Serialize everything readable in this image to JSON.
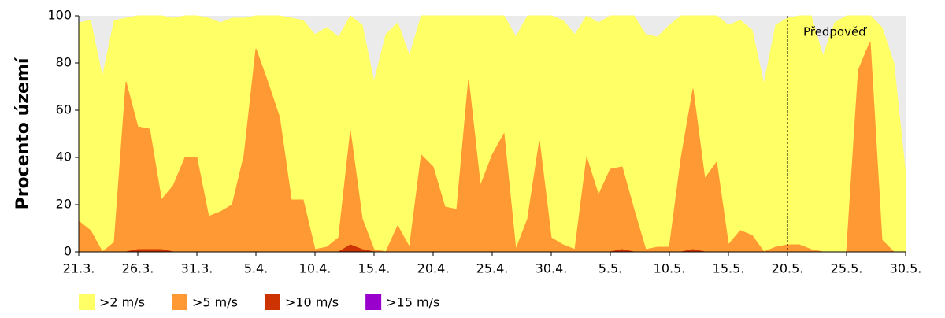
{
  "chart_data": {
    "type": "area",
    "y_label": "Procento území",
    "annotation": "Předpověď",
    "forecast_start": "20.5.",
    "categories": [
      "21.3.",
      null,
      null,
      null,
      null,
      "26.3.",
      null,
      null,
      null,
      null,
      "31.3.",
      null,
      null,
      null,
      null,
      "5.4.",
      null,
      null,
      null,
      null,
      "10.4.",
      null,
      null,
      null,
      null,
      "15.4.",
      null,
      null,
      null,
      null,
      "20.4.",
      null,
      null,
      null,
      null,
      "25.4.",
      null,
      null,
      null,
      null,
      "30.4.",
      null,
      null,
      null,
      null,
      "5.5.",
      null,
      null,
      null,
      null,
      "10.5.",
      null,
      null,
      null,
      null,
      "15.5.",
      null,
      null,
      null,
      null,
      "20.5.",
      null,
      null,
      null,
      null,
      "25.5.",
      null,
      null,
      null,
      null,
      "30.5."
    ],
    "series": [
      {
        "name": ">2 m/s",
        "color": "#ffff66",
        "values": [
          97,
          98,
          74,
          98,
          99,
          100,
          100,
          100,
          99,
          100,
          100,
          99,
          97,
          99,
          99,
          100,
          100,
          100,
          99,
          98,
          92,
          95,
          91,
          100,
          96,
          72,
          92,
          97,
          83,
          100,
          100,
          100,
          100,
          100,
          100,
          100,
          100,
          91,
          100,
          100,
          100,
          98,
          92,
          100,
          97,
          100,
          100,
          100,
          92,
          91,
          96,
          100,
          100,
          100,
          100,
          96,
          98,
          94,
          71,
          96,
          99,
          100,
          100,
          83,
          97,
          100,
          100,
          100,
          95,
          80,
          33
        ]
      },
      {
        "name": ">5 m/s",
        "color": "#ff9933",
        "values": [
          13,
          9,
          0,
          4,
          72,
          53,
          52,
          22,
          28,
          40,
          40,
          15,
          17,
          20,
          41,
          86,
          72,
          57,
          22,
          22,
          1,
          2,
          6,
          51,
          14,
          1,
          0,
          11,
          2,
          41,
          36,
          19,
          18,
          73,
          28,
          41,
          50,
          1,
          14,
          47,
          6,
          3,
          1,
          40,
          24,
          35,
          36,
          18,
          1,
          2,
          2,
          40,
          69,
          31,
          38,
          3,
          9,
          7,
          0,
          2,
          3,
          3,
          1,
          0,
          0,
          0,
          77,
          89,
          5,
          0,
          0
        ]
      },
      {
        "name": ">10 m/s",
        "color": "#cc3300",
        "values": [
          0,
          0,
          0,
          0,
          0,
          1,
          1,
          1,
          0,
          0,
          0,
          0,
          0,
          0,
          0,
          0,
          0,
          0,
          0,
          0,
          0,
          0,
          0,
          3,
          1,
          0,
          0,
          0,
          0,
          0,
          0,
          0,
          0,
          0,
          0,
          0,
          0,
          0,
          0,
          0,
          0,
          0,
          0,
          0,
          0,
          0,
          1,
          0,
          0,
          0,
          0,
          0,
          1,
          0,
          0,
          0,
          0,
          0,
          0,
          0,
          0,
          0,
          0,
          0,
          0,
          0,
          0,
          0,
          0,
          0,
          0
        ]
      },
      {
        "name": ">15 m/s",
        "color": "#9900cc",
        "values": [
          0,
          0,
          0,
          0,
          0,
          0,
          0,
          0,
          0,
          0,
          0,
          0,
          0,
          0,
          0,
          0,
          0,
          0,
          0,
          0,
          0,
          0,
          0,
          0,
          0,
          0,
          0,
          0,
          0,
          0,
          0,
          0,
          0,
          0,
          0,
          0,
          0,
          0,
          0,
          0,
          0,
          0,
          0,
          0,
          0,
          0,
          0,
          0,
          0,
          0,
          0,
          0,
          0,
          0,
          0,
          0,
          0,
          0,
          0,
          0,
          0,
          0,
          0,
          0,
          0,
          0,
          0,
          0,
          0,
          0,
          0
        ]
      }
    ],
    "ylim": [
      0,
      100
    ],
    "yticks": [
      0,
      20,
      40,
      60,
      80,
      100
    ],
    "grid": false
  }
}
